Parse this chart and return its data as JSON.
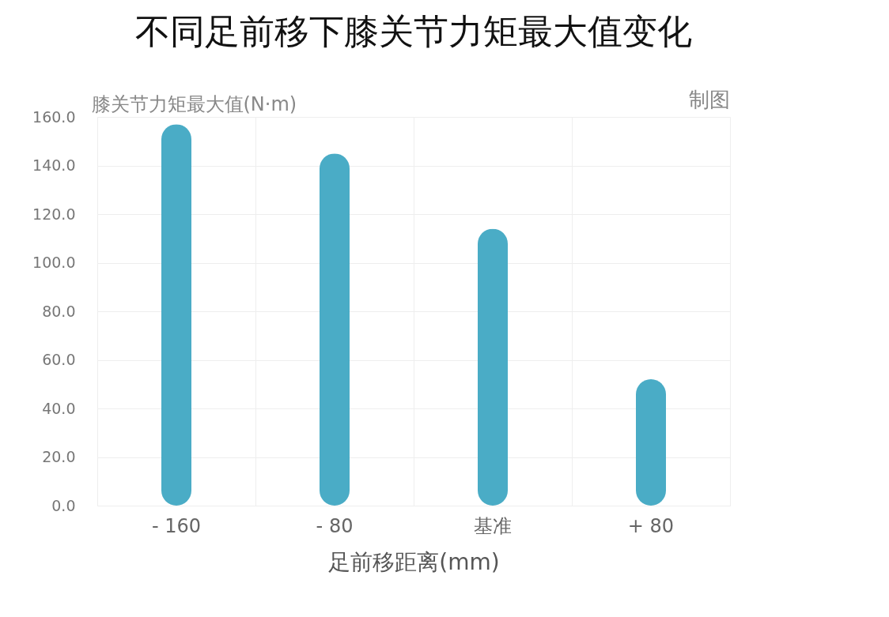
{
  "chart_data": {
    "type": "bar",
    "title": "不同足前移下膝关节力矩最大值变化",
    "xlabel": "足前移距离(mm)",
    "ylabel": "膝关节力矩最大值(N·m)",
    "annotations": [
      "制图"
    ],
    "categories": [
      "- 160",
      "- 80",
      "基准",
      "+ 80"
    ],
    "values": [
      157,
      145,
      114,
      52
    ],
    "color": "#4aacc6",
    "ylim": [
      0,
      160
    ],
    "yticks": [
      {
        "value": 0,
        "label": "0.0"
      },
      {
        "value": 20,
        "label": "20.0"
      },
      {
        "value": 40,
        "label": "40.0"
      },
      {
        "value": 60,
        "label": "60.0"
      },
      {
        "value": 80,
        "label": "80.0"
      },
      {
        "value": 100,
        "label": "100.0"
      },
      {
        "value": 120,
        "label": "120.0"
      },
      {
        "value": 140,
        "label": "140.0"
      },
      {
        "value": 160,
        "label": "160.0"
      }
    ],
    "grid": true
  }
}
